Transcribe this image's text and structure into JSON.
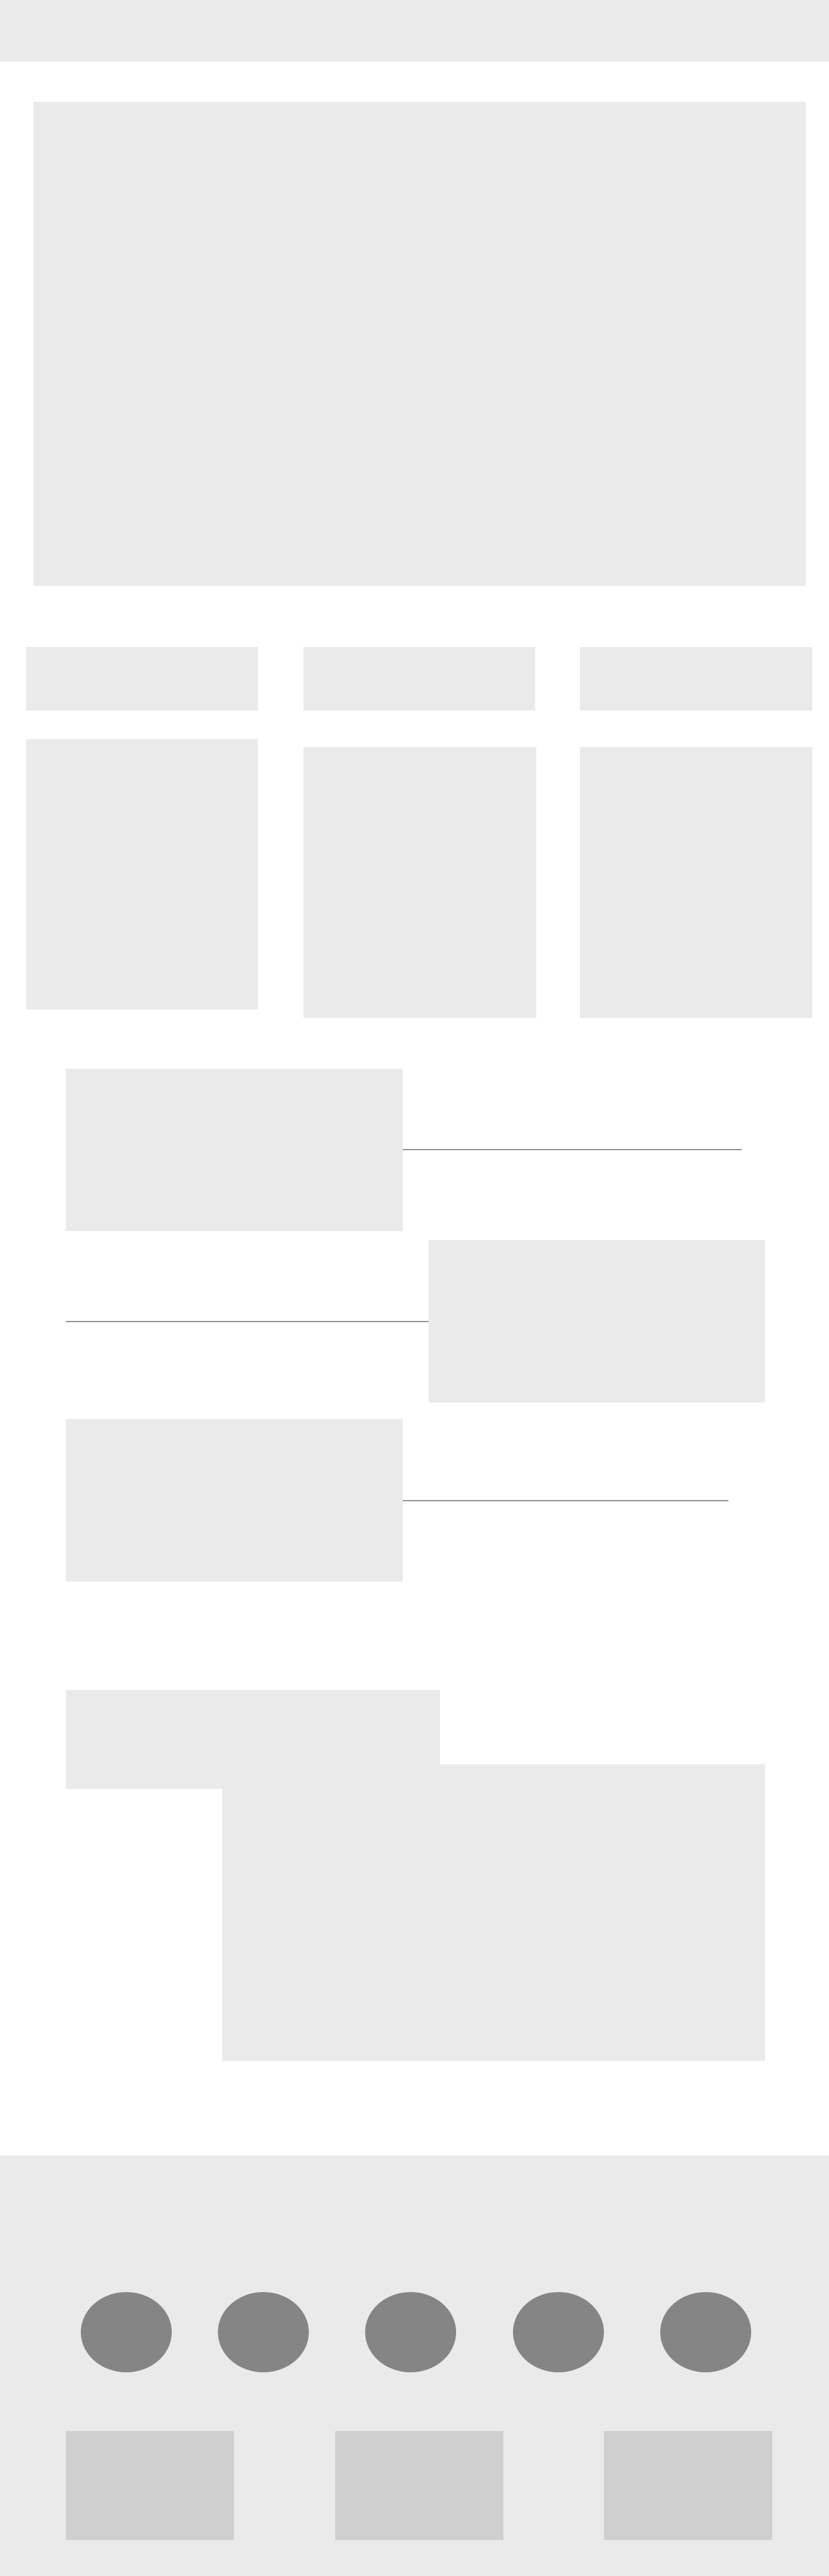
{
  "page": {
    "background": "#ffffff",
    "placeholder_color": "#eaeaea",
    "divider_color": "#8d8d8d"
  },
  "header": {
    "background": "#eaeaea"
  },
  "hero": {
    "placeholder": true
  },
  "feature_cards": [
    {
      "title_placeholder": true,
      "body_placeholder": true
    },
    {
      "title_placeholder": true,
      "body_placeholder": true
    },
    {
      "title_placeholder": true,
      "body_placeholder": true
    }
  ],
  "timeline": [
    {
      "side": "left"
    },
    {
      "side": "right"
    },
    {
      "side": "left"
    }
  ],
  "overlap_section": {
    "placeholder": true
  },
  "footer": {
    "background": "#eaeaea",
    "social_icons": [
      {
        "name": "social-icon-1",
        "color": "#858585"
      },
      {
        "name": "social-icon-2",
        "color": "#858585"
      },
      {
        "name": "social-icon-3",
        "color": "#858585"
      },
      {
        "name": "social-icon-4",
        "color": "#858585"
      },
      {
        "name": "social-icon-5",
        "color": "#858585"
      }
    ],
    "blocks": [
      {
        "color": "#cfcfcf"
      },
      {
        "color": "#cfcfcf"
      },
      {
        "color": "#cfcfcf"
      }
    ]
  }
}
